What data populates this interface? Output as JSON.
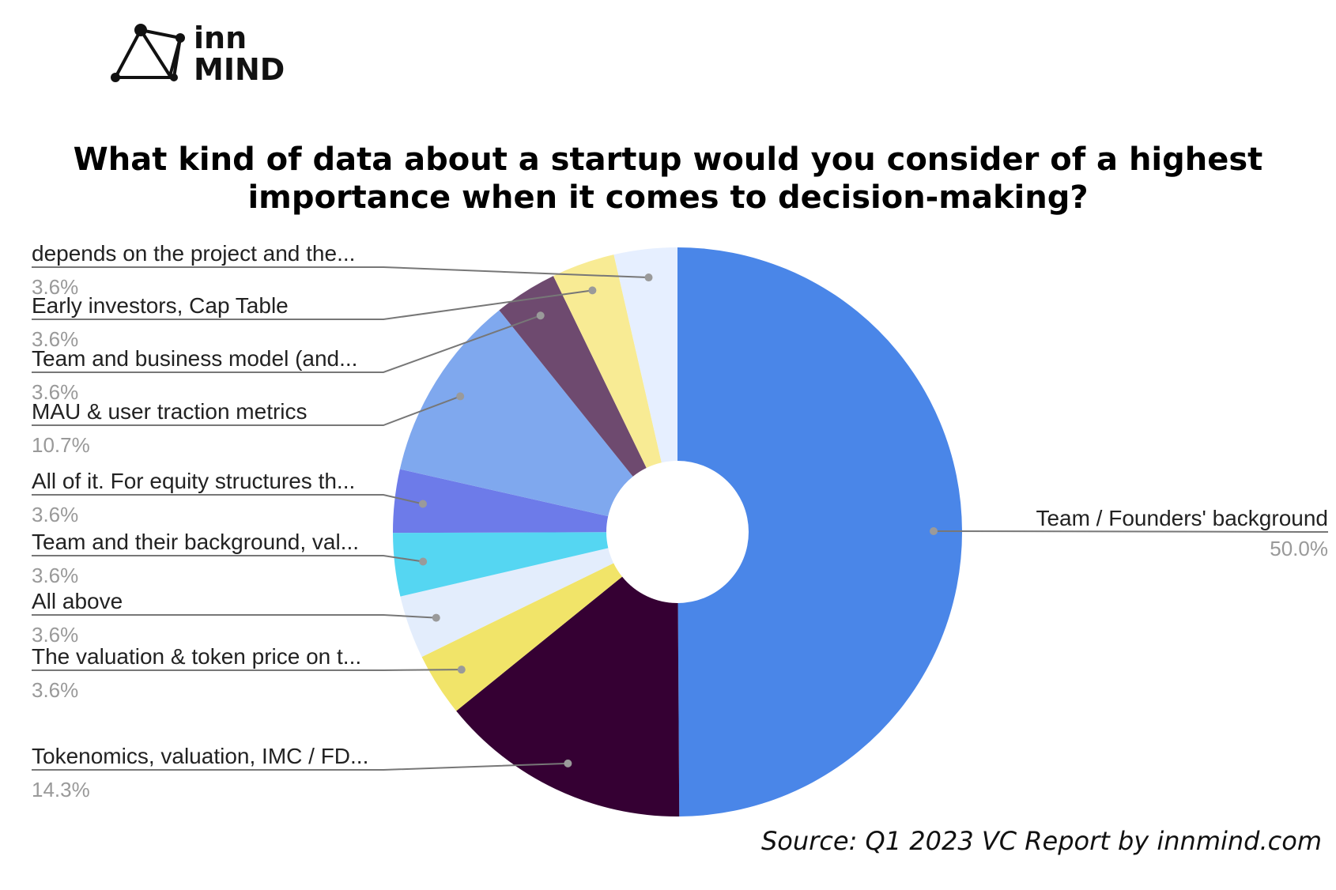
{
  "logo": {
    "line1": "inn",
    "line2": "MIND"
  },
  "title": {
    "line1": "What kind of data about a startup would you consider of a highest",
    "line2": "importance when it comes to decision-making?"
  },
  "source": "Source: Q1 2023 VC Report by innmind.com",
  "chart_data": {
    "type": "pie",
    "donut": true,
    "title": "What kind of data about a startup would you consider of a highest importance when it comes to decision-making?",
    "slices": [
      {
        "label": "Team / Founders' background",
        "value": 50.0,
        "value_label": "50.0%",
        "color": "#4a86e8"
      },
      {
        "label": "Tokenomics, valuation, IMC / FD...",
        "value": 14.3,
        "value_label": "14.3%",
        "color": "#350033"
      },
      {
        "label": "The valuation & token price on t...",
        "value": 3.6,
        "value_label": "3.6%",
        "color": "#f1e469"
      },
      {
        "label": "All above",
        "value": 3.6,
        "value_label": "3.6%",
        "color": "#e3edfc"
      },
      {
        "label": "Team and their background, val...",
        "value": 3.6,
        "value_label": "3.6%",
        "color": "#55d6f2"
      },
      {
        "label": "All of it. For equity structures th...",
        "value": 3.6,
        "value_label": "3.6%",
        "color": "#6d7be9"
      },
      {
        "label": "MAU & user traction metrics",
        "value": 10.7,
        "value_label": "10.7%",
        "color": "#7fa8ee"
      },
      {
        "label": "Team and business model (and...",
        "value": 3.6,
        "value_label": "3.6%",
        "color": "#6e4a6f"
      },
      {
        "label": "Early investors, Cap Table",
        "value": 3.6,
        "value_label": "3.6%",
        "color": "#f8eb94"
      },
      {
        "label": "depends on the project and the...",
        "value": 3.6,
        "value_label": "3.6%",
        "color": "#e6efff"
      }
    ],
    "legend": "none"
  }
}
